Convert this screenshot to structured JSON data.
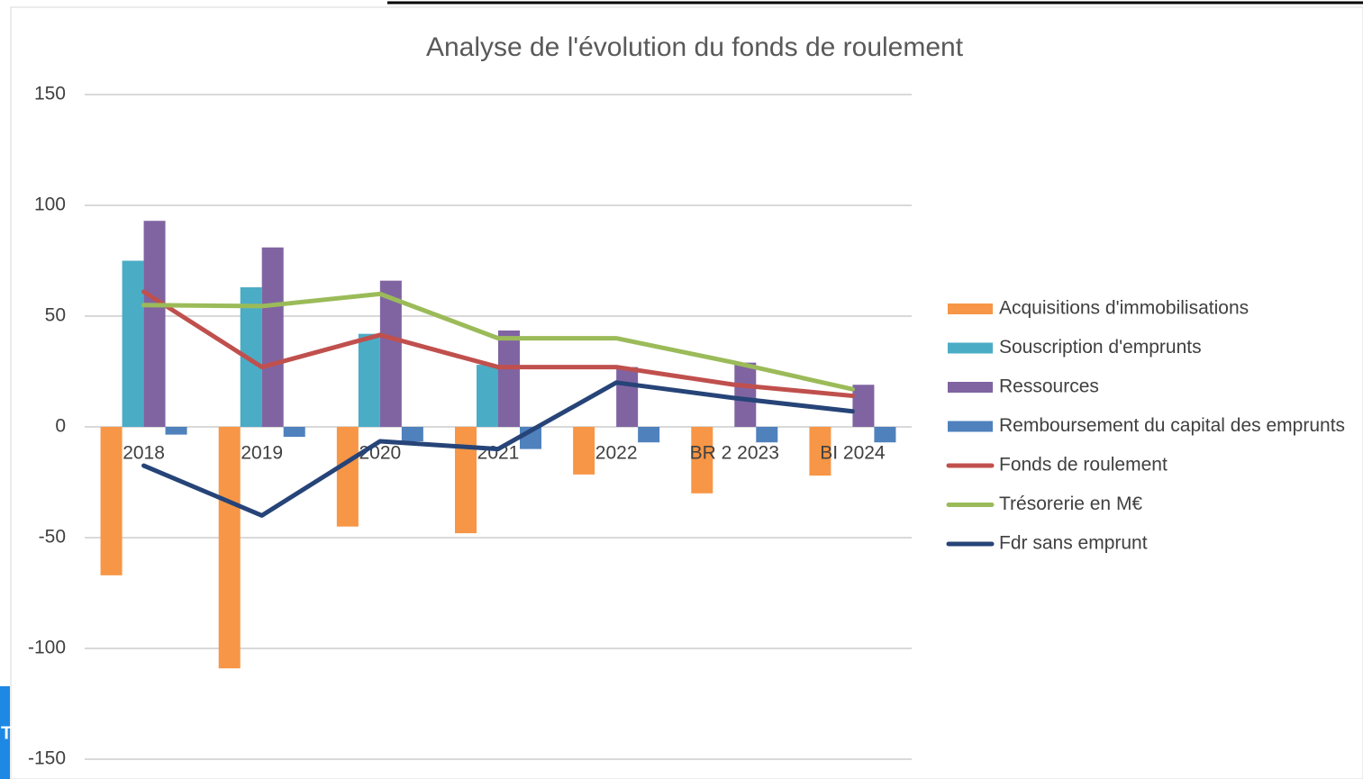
{
  "chart_data": {
    "type": "bar_line",
    "title": "Analyse de l'évolution du fonds de roulement",
    "categories": [
      "2018",
      "2019",
      "2020",
      "2021",
      "2022",
      "BR 2 2023",
      "BI 2024"
    ],
    "series": [
      {
        "name": "Acquisitions d'immobilisations",
        "type": "bar",
        "color": "#f79646",
        "values": [
          -67,
          -109,
          -45,
          -48,
          -21.5,
          -30,
          -22
        ]
      },
      {
        "name": "Souscription d'emprunts",
        "type": "bar",
        "color": "#4bacc6",
        "values": [
          75,
          63,
          42,
          28,
          0,
          0,
          0
        ]
      },
      {
        "name": "Ressources",
        "type": "bar",
        "color": "#8064a2",
        "values": [
          93,
          81,
          66,
          43.5,
          27,
          29,
          19
        ]
      },
      {
        "name": "Remboursement du capital des emprunts",
        "type": "bar",
        "color": "#4f81bd",
        "values": [
          -3.5,
          -4.5,
          -6.5,
          -10,
          -7,
          -7,
          -7
        ]
      },
      {
        "name": "Fonds de roulement",
        "type": "line",
        "color": "#c0504d",
        "values": [
          61,
          27,
          41.5,
          27,
          27,
          19,
          14
        ]
      },
      {
        "name": "Trésorerie en M€",
        "type": "line",
        "color": "#9bbb59",
        "values": [
          55,
          54.5,
          60,
          40,
          40,
          29,
          17
        ]
      },
      {
        "name": "Fdr sans emprunt",
        "type": "line",
        "color": "#264478",
        "values": [
          -17.5,
          -40,
          -6.5,
          -10,
          20,
          13,
          7
        ]
      }
    ],
    "ylim": [
      -150,
      150
    ],
    "yticks": [
      -150,
      -100,
      -50,
      0,
      50,
      100,
      150
    ],
    "grid": true,
    "legend": "right"
  },
  "sidebar_text": "T"
}
